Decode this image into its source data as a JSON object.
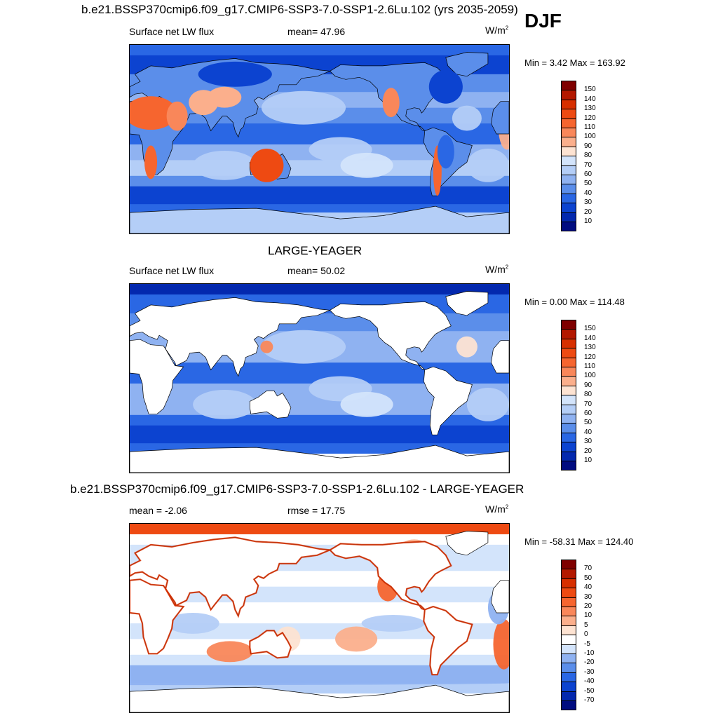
{
  "season": "DJF",
  "chart_data": [
    {
      "type": "heatmap",
      "title": "b.e21.BSSP370cmip6.f09_g17.CMIP6-SSP3-7.0-SSP1-2.6Lu.102 (yrs 2035-2059)",
      "left_label": "Surface net LW flux",
      "stat_label": "mean=  47.96",
      "units": "W/m",
      "units_exp": "2",
      "minmax": "Min =   3.42 Max = 163.92",
      "min": 3.42,
      "max": 163.92,
      "mean": 47.96,
      "levels": [
        "150",
        "140",
        "130",
        "120",
        "110",
        "100",
        "90",
        "80",
        "70",
        "60",
        "50",
        "40",
        "30",
        "20",
        "10"
      ],
      "colors": [
        "#7f0000",
        "#b31800",
        "#d72f00",
        "#ee4a12",
        "#f6652f",
        "#f9875a",
        "#fbaf8c",
        "#fde3d2",
        "#d3e4fb",
        "#b4cef7",
        "#8fb2f1",
        "#5b8eea",
        "#2a67e4",
        "#0c43d0",
        "#0328ae",
        "#000c80"
      ],
      "land_masked": false
    },
    {
      "type": "heatmap",
      "title": "LARGE-YEAGER",
      "left_label": "Surface net LW flux",
      "stat_label": "mean=  50.02",
      "units": "W/m",
      "units_exp": "2",
      "minmax": "Min =   0.00 Max = 114.48",
      "min": 0.0,
      "max": 114.48,
      "mean": 50.02,
      "levels": [
        "150",
        "140",
        "130",
        "120",
        "110",
        "100",
        "90",
        "80",
        "70",
        "60",
        "50",
        "40",
        "30",
        "20",
        "10"
      ],
      "colors": [
        "#7f0000",
        "#b31800",
        "#d72f00",
        "#ee4a12",
        "#f6652f",
        "#f9875a",
        "#fbaf8c",
        "#fde3d2",
        "#d3e4fb",
        "#b4cef7",
        "#8fb2f1",
        "#5b8eea",
        "#2a67e4",
        "#0c43d0",
        "#0328ae",
        "#000c80"
      ],
      "land_masked": true
    },
    {
      "type": "heatmap",
      "title": "b.e21.BSSP370cmip6.f09_g17.CMIP6-SSP3-7.0-SSP1-2.6Lu.102 - LARGE-YEAGER",
      "left_label": "mean =  -2.06",
      "stat_label": "rmse =  17.75",
      "units": "W/m",
      "units_exp": "2",
      "minmax": "Min = -58.31 Max = 124.40",
      "min": -58.31,
      "max": 124.4,
      "mean": -2.06,
      "rmse": 17.75,
      "levels": [
        "70",
        "50",
        "40",
        "30",
        "20",
        "10",
        "5",
        "0",
        "-5",
        "-10",
        "-20",
        "-30",
        "-40",
        "-50",
        "-70"
      ],
      "colors": [
        "#7f0000",
        "#b31800",
        "#d72f00",
        "#ee4a12",
        "#f6652f",
        "#f9875a",
        "#fbaf8c",
        "#fde3d2",
        "#ffffff",
        "#d3e4fb",
        "#8fb2f1",
        "#5b8eea",
        "#2a67e4",
        "#0c43d0",
        "#0328ae",
        "#000c80"
      ],
      "land_masked": true
    }
  ]
}
